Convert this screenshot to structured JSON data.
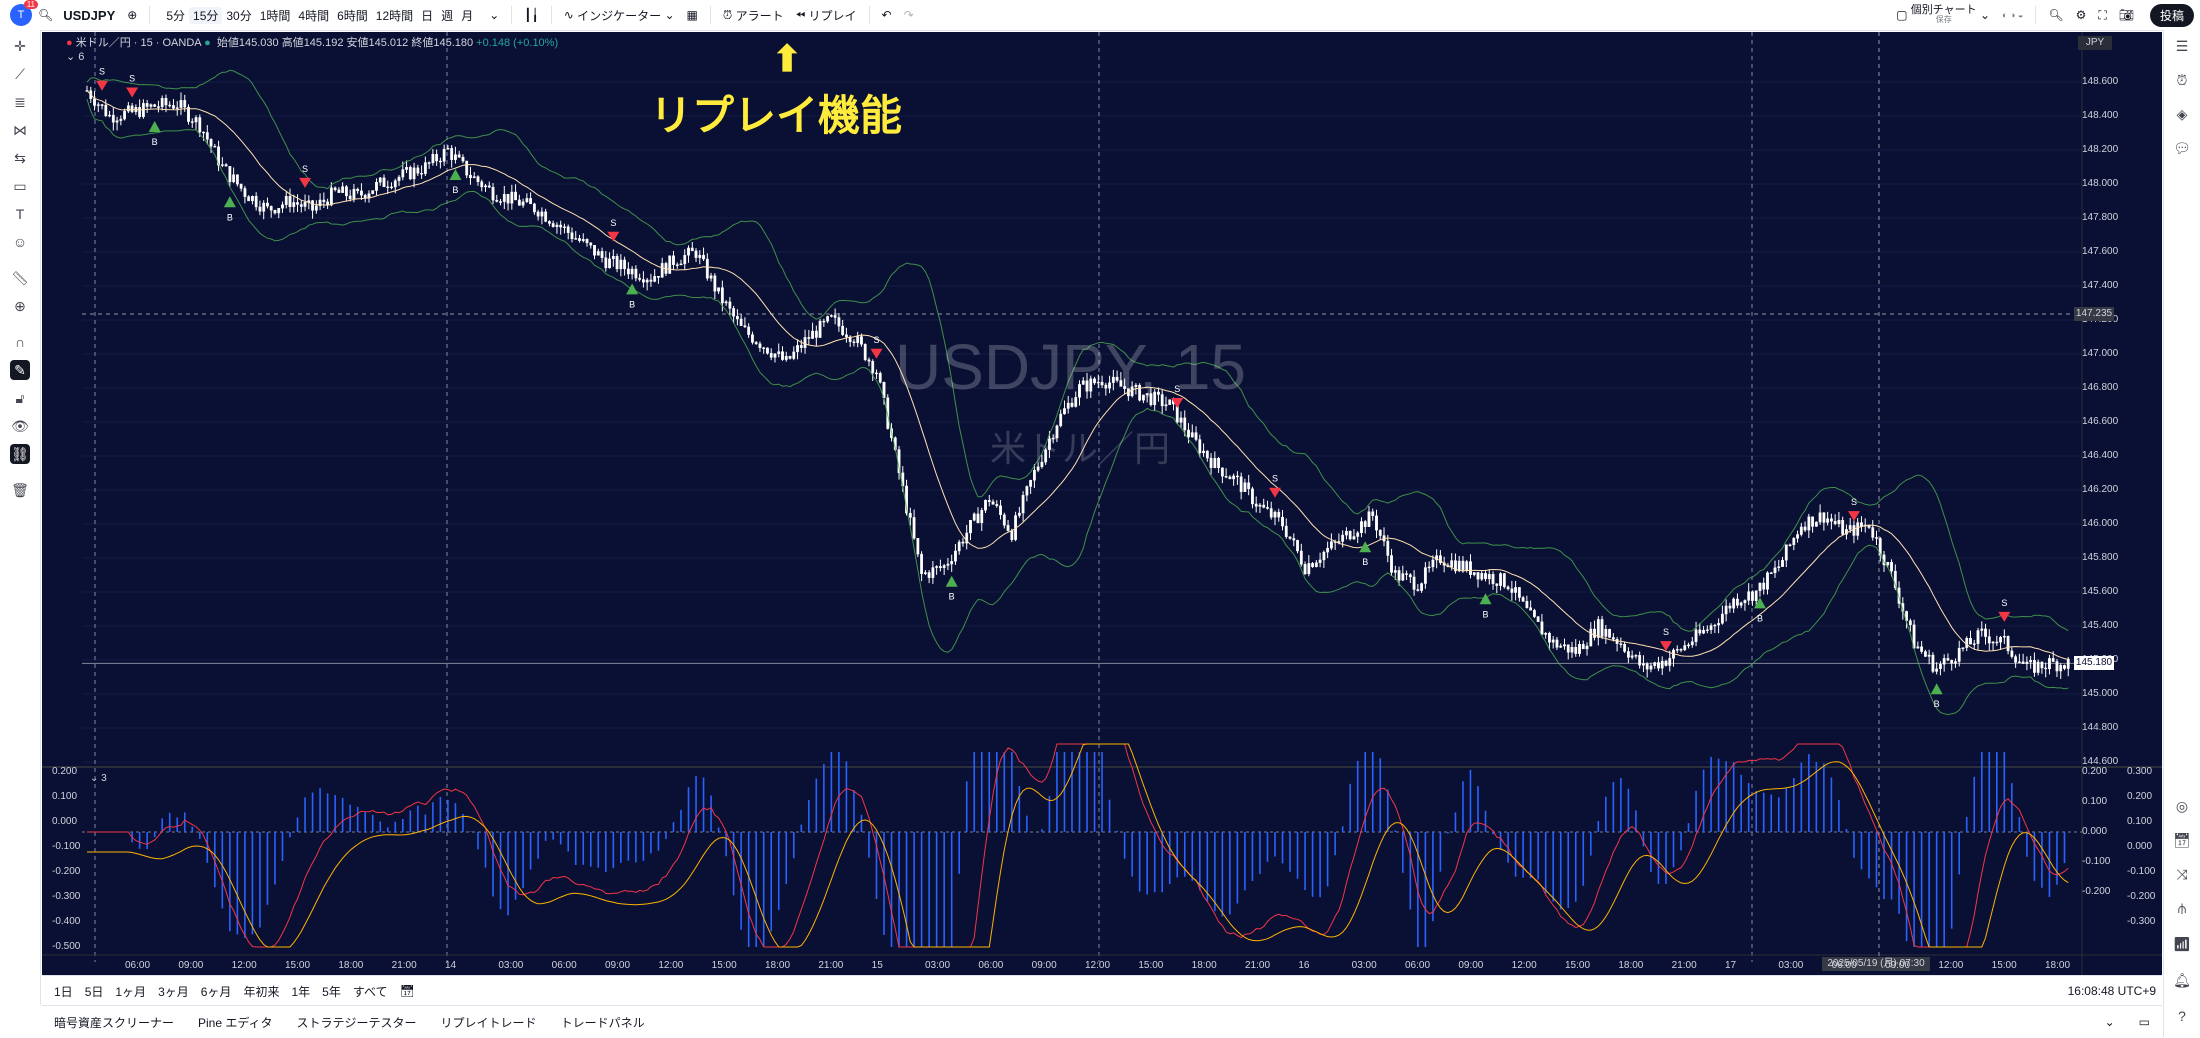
{
  "topbar": {
    "notif_count": "11",
    "symbol": "USDJPY",
    "timeframes": [
      "5分",
      "15分",
      "30分",
      "1時間",
      "4時間",
      "6時間",
      "12時間",
      "日",
      "週",
      "月"
    ],
    "active_timeframe_index": 1,
    "indicators_label": "インジケーター",
    "alert_label": "アラート",
    "replay_label": "リプレイ",
    "layout_label": "個別チャート",
    "layout_sub": "保存",
    "publish_label": "投稿"
  },
  "legend": {
    "title": "米ドル／円 · 15 · OANDA",
    "open_label": "始値",
    "open": "145.030",
    "high_label": "高値",
    "high": "145.192",
    "low_label": "安値",
    "low": "145.012",
    "close_label": "終値",
    "close": "145.180",
    "change": "+0.148 (+0.10%)",
    "collapsed_count": "6",
    "sub_collapsed_count": "3"
  },
  "annotation": {
    "text": "リプレイ機能",
    "arrow": "⬆"
  },
  "watermark": {
    "symbol": "USDJPY, 15",
    "name": "米ドル／円"
  },
  "currency": "JPY",
  "price_axis": [
    "148.600",
    "148.400",
    "148.200",
    "148.000",
    "147.800",
    "147.600",
    "147.400",
    "147.200",
    "147.000",
    "146.800",
    "146.600",
    "146.400",
    "146.200",
    "146.000",
    "145.800",
    "145.600",
    "145.400",
    "145.200",
    "145.000",
    "144.800",
    "144.600"
  ],
  "crosshair_price": "147.235",
  "osc_left_axis": [
    "0.200",
    "0.100",
    "0.000",
    "-0.100",
    "-0.200",
    "-0.300",
    "-0.400",
    "-0.500"
  ],
  "osc_right_axis_a": [
    "0.200",
    "0.100",
    "0.000",
    "-0.100",
    "-0.200"
  ],
  "osc_right_axis_b": [
    "0.300",
    "0.200",
    "0.100",
    "0.000",
    "-0.100",
    "-0.200",
    "-0.300"
  ],
  "time_axis": [
    "06:00",
    "09:00",
    "12:00",
    "15:00",
    "18:00",
    "21:00",
    "14",
    "03:00",
    "06:00",
    "09:00",
    "12:00",
    "15:00",
    "18:00",
    "21:00",
    "15",
    "03:00",
    "06:00",
    "09:00",
    "12:00",
    "15:00",
    "18:00",
    "21:00",
    "16",
    "03:00",
    "06:00",
    "09:00",
    "12:00",
    "15:00",
    "18:00",
    "21:00",
    "17",
    "03:00",
    "06:00",
    "09:00",
    "12:00",
    "15:00",
    "18:00"
  ],
  "crosshair_date": "2025/05/19 (月)  07:30",
  "bottombar": {
    "ranges": [
      "1日",
      "5日",
      "1ヶ月",
      "3ヶ月",
      "6ヶ月",
      "年初来",
      "1年",
      "5年",
      "すべて"
    ],
    "clock": "16:08:48 UTC+9"
  },
  "tabs": [
    "暗号資産スクリーナー",
    "Pine エディタ",
    "ストラテジーテスター",
    "リプレイトレード",
    "トレードパネル"
  ],
  "signal_labels": {
    "buy": "B",
    "sell": "S"
  },
  "chart_data": {
    "type": "candlestick",
    "symbol": "USDJPY",
    "interval": "15",
    "close_path": [
      148.55,
      148.4,
      148.42,
      148.46,
      148.47,
      148.35,
      148.1,
      147.95,
      147.85,
      147.9,
      147.85,
      147.95,
      147.93,
      148.0,
      148.05,
      148.1,
      148.2,
      148.05,
      147.95,
      147.9,
      147.85,
      147.75,
      147.65,
      147.55,
      147.5,
      147.45,
      147.55,
      147.6,
      147.35,
      147.15,
      147.05,
      146.95,
      147.1,
      147.2,
      147.1,
      146.9,
      146.3,
      145.7,
      145.75,
      145.95,
      146.15,
      145.95,
      146.3,
      146.6,
      146.8,
      146.85,
      146.8,
      146.75,
      146.7,
      146.5,
      146.35,
      146.25,
      146.1,
      146.0,
      145.75,
      145.85,
      145.95,
      146.05,
      145.7,
      145.65,
      145.8,
      145.75,
      145.7,
      145.65,
      145.45,
      145.3,
      145.25,
      145.4,
      145.3,
      145.15,
      145.2,
      145.3,
      145.4,
      145.55,
      145.6,
      145.75,
      146.0,
      146.05,
      145.95,
      146.0,
      145.7,
      145.3,
      145.15,
      145.25,
      145.35,
      145.3,
      145.15,
      145.18
    ]
  }
}
